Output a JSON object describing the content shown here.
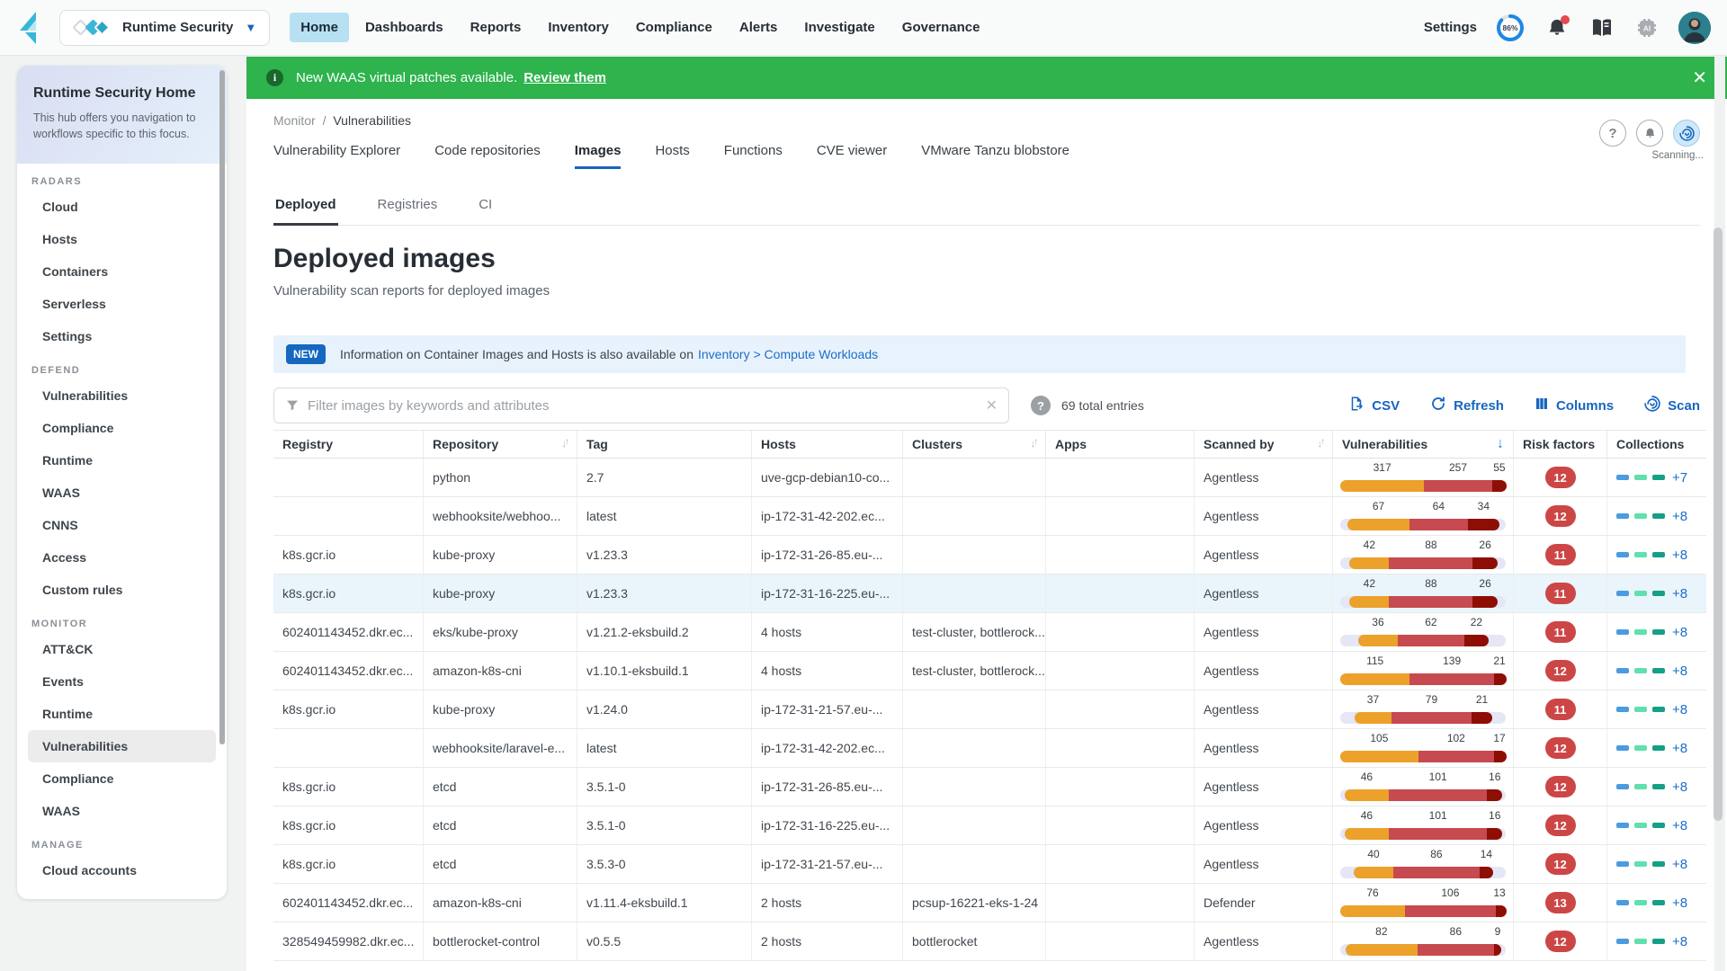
{
  "topbar": {
    "product": "Runtime Security",
    "nav": [
      {
        "label": "Home",
        "active": true
      },
      {
        "label": "Dashboards",
        "active": false
      },
      {
        "label": "Reports",
        "active": false
      },
      {
        "label": "Inventory",
        "active": false
      },
      {
        "label": "Compliance",
        "active": false
      },
      {
        "label": "Alerts",
        "active": false
      },
      {
        "label": "Investigate",
        "active": false
      },
      {
        "label": "Governance",
        "active": false
      }
    ],
    "settings_label": "Settings",
    "gauge_value": "86%"
  },
  "sidebar": {
    "title": "Runtime Security Home",
    "description": "This hub offers you navigation to workflows specific to this focus.",
    "sections": [
      {
        "label": "RADARS",
        "items": [
          {
            "label": "Cloud"
          },
          {
            "label": "Hosts"
          },
          {
            "label": "Containers"
          },
          {
            "label": "Serverless"
          },
          {
            "label": "Settings"
          }
        ]
      },
      {
        "label": "DEFEND",
        "items": [
          {
            "label": "Vulnerabilities"
          },
          {
            "label": "Compliance"
          },
          {
            "label": "Runtime"
          },
          {
            "label": "WAAS"
          },
          {
            "label": "CNNS"
          },
          {
            "label": "Access"
          },
          {
            "label": "Custom rules"
          }
        ]
      },
      {
        "label": "MONITOR",
        "items": [
          {
            "label": "ATT&CK"
          },
          {
            "label": "Events"
          },
          {
            "label": "Runtime"
          },
          {
            "label": "Vulnerabilities",
            "active": true
          },
          {
            "label": "Compliance"
          },
          {
            "label": "WAAS"
          }
        ]
      },
      {
        "label": "MANAGE",
        "items": [
          {
            "label": "Cloud accounts"
          }
        ]
      }
    ]
  },
  "banner": {
    "text": "New WAAS virtual patches available.",
    "link": "Review them",
    "close": "✕"
  },
  "breadcrumb": {
    "parent": "Monitor",
    "separator": "/",
    "current": "Vulnerabilities"
  },
  "corner": {
    "scanning_label": "Scanning..."
  },
  "tabs": [
    {
      "label": "Vulnerability Explorer"
    },
    {
      "label": "Code repositories"
    },
    {
      "label": "Images",
      "active": true
    },
    {
      "label": "Hosts"
    },
    {
      "label": "Functions"
    },
    {
      "label": "CVE viewer"
    },
    {
      "label": "VMware Tanzu blobstore"
    }
  ],
  "subtabs": [
    {
      "label": "Deployed",
      "active": true
    },
    {
      "label": "Registries"
    },
    {
      "label": "CI"
    }
  ],
  "page": {
    "title": "Deployed images",
    "subtitle": "Vulnerability scan reports for deployed images"
  },
  "info_strip": {
    "badge": "NEW",
    "text": "Information on Container Images and Hosts is also available on",
    "link": "Inventory > Compute Workloads"
  },
  "toolbar": {
    "filter_placeholder": "Filter images by keywords and attributes",
    "total": "69 total entries",
    "buttons": [
      {
        "label": "CSV",
        "icon": "csv-export-icon"
      },
      {
        "label": "Refresh",
        "icon": "refresh-icon"
      },
      {
        "label": "Columns",
        "icon": "columns-icon"
      },
      {
        "label": "Scan",
        "icon": "scan-radar-icon"
      }
    ]
  },
  "table": {
    "columns": [
      {
        "label": "Registry"
      },
      {
        "label": "Repository",
        "sortable": true
      },
      {
        "label": "Tag"
      },
      {
        "label": "Hosts"
      },
      {
        "label": "Clusters",
        "sortable": true
      },
      {
        "label": "Apps"
      },
      {
        "label": "Scanned by",
        "sortable": true
      },
      {
        "label": "Vulnerabilities",
        "sorted_desc": true
      },
      {
        "label": "Risk factors"
      },
      {
        "label": "Collections"
      }
    ],
    "rows": [
      {
        "registry": "",
        "repository": "python",
        "tag": "2.7",
        "hosts": "uve-gcp-debian10-co...",
        "clusters": "",
        "apps": "",
        "scanned_by": "Agentless",
        "vulns": [
          317,
          257,
          55
        ],
        "bar_pct": 100,
        "risk": "12",
        "coll_more": "+7"
      },
      {
        "registry": "",
        "repository": "webhooksite/webhoo...",
        "tag": "latest",
        "hosts": "ip-172-31-42-202.ec...",
        "clusters": "",
        "apps": "",
        "scanned_by": "Agentless",
        "vulns": [
          67,
          64,
          34
        ],
        "bar_pct": 91,
        "risk": "12",
        "coll_more": "+8"
      },
      {
        "registry": "k8s.gcr.io",
        "repository": "kube-proxy",
        "tag": "v1.23.3",
        "hosts": "ip-172-31-26-85.eu-...",
        "clusters": "",
        "apps": "",
        "scanned_by": "Agentless",
        "vulns": [
          42,
          88,
          26
        ],
        "bar_pct": 89,
        "risk": "11",
        "coll_more": "+8"
      },
      {
        "registry": "k8s.gcr.io",
        "repository": "kube-proxy",
        "tag": "v1.23.3",
        "hosts": "ip-172-31-16-225.eu-...",
        "clusters": "",
        "apps": "",
        "scanned_by": "Agentless",
        "vulns": [
          42,
          88,
          26
        ],
        "bar_pct": 89,
        "risk": "11",
        "coll_more": "+8",
        "highlight": true
      },
      {
        "registry": "602401143452.dkr.ec...",
        "repository": "eks/kube-proxy",
        "tag": "v1.21.2-eksbuild.2",
        "hosts": "4 hosts",
        "clusters": "test-cluster, bottlerock...",
        "apps": "",
        "scanned_by": "Agentless",
        "vulns": [
          36,
          62,
          22
        ],
        "bar_pct": 78,
        "risk": "11",
        "coll_more": "+8"
      },
      {
        "registry": "602401143452.dkr.ec...",
        "repository": "amazon-k8s-cni",
        "tag": "v1.10.1-eksbuild.1",
        "hosts": "4 hosts",
        "clusters": "test-cluster, bottlerock...",
        "apps": "",
        "scanned_by": "Agentless",
        "vulns": [
          115,
          139,
          21
        ],
        "bar_pct": 100,
        "risk": "12",
        "coll_more": "+8"
      },
      {
        "registry": "k8s.gcr.io",
        "repository": "kube-proxy",
        "tag": "v1.24.0",
        "hosts": "ip-172-31-21-57.eu-...",
        "clusters": "",
        "apps": "",
        "scanned_by": "Agentless",
        "vulns": [
          37,
          79,
          21
        ],
        "bar_pct": 83,
        "risk": "11",
        "coll_more": "+8"
      },
      {
        "registry": "",
        "repository": "webhooksite/laravel-e...",
        "tag": "latest",
        "hosts": "ip-172-31-42-202.ec...",
        "clusters": "",
        "apps": "",
        "scanned_by": "Agentless",
        "vulns": [
          105,
          102,
          17
        ],
        "bar_pct": 100,
        "risk": "12",
        "coll_more": "+8"
      },
      {
        "registry": "k8s.gcr.io",
        "repository": "etcd",
        "tag": "3.5.1-0",
        "hosts": "ip-172-31-26-85.eu-...",
        "clusters": "",
        "apps": "",
        "scanned_by": "Agentless",
        "vulns": [
          46,
          101,
          16
        ],
        "bar_pct": 95,
        "risk": "12",
        "coll_more": "+8"
      },
      {
        "registry": "k8s.gcr.io",
        "repository": "etcd",
        "tag": "3.5.1-0",
        "hosts": "ip-172-31-16-225.eu-...",
        "clusters": "",
        "apps": "",
        "scanned_by": "Agentless",
        "vulns": [
          46,
          101,
          16
        ],
        "bar_pct": 95,
        "risk": "12",
        "coll_more": "+8"
      },
      {
        "registry": "k8s.gcr.io",
        "repository": "etcd",
        "tag": "3.5.3-0",
        "hosts": "ip-172-31-21-57.eu-...",
        "clusters": "",
        "apps": "",
        "scanned_by": "Agentless",
        "vulns": [
          40,
          86,
          14
        ],
        "bar_pct": 84,
        "risk": "12",
        "coll_more": "+8"
      },
      {
        "registry": "602401143452.dkr.ec...",
        "repository": "amazon-k8s-cni",
        "tag": "v1.11.4-eksbuild.1",
        "hosts": "2 hosts",
        "clusters": "pcsup-16221-eks-1-24",
        "apps": "",
        "scanned_by": "Defender",
        "vulns": [
          76,
          106,
          13
        ],
        "bar_pct": 100,
        "risk": "13",
        "coll_more": "+8"
      },
      {
        "registry": "328549459982.dkr.ec...",
        "repository": "bottlerocket-control",
        "tag": "v0.5.5",
        "hosts": "2 hosts",
        "clusters": "bottlerocket",
        "apps": "",
        "scanned_by": "Agentless",
        "vulns": [
          82,
          86,
          9
        ],
        "bar_pct": 94,
        "risk": "12",
        "coll_more": "+8"
      }
    ]
  },
  "colors": {
    "vuln_high": "#eca12b",
    "vuln_critical": "#c64a50",
    "vuln_max": "#8e0e05",
    "risk_badge": "#cd4646",
    "collection_dashes": [
      "#4b9be0",
      "#5fe0ae",
      "#159f87"
    ],
    "banner_green": "#2eb34d",
    "accent_blue": "#1765c0"
  }
}
